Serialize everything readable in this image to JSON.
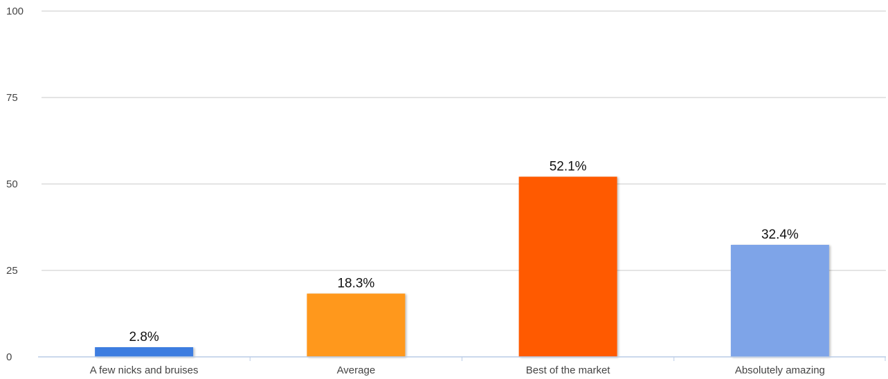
{
  "chart_data": {
    "type": "bar",
    "title": "",
    "xlabel": "",
    "ylabel": "",
    "ylim": [
      0,
      100
    ],
    "yticks": [
      0,
      25,
      50,
      75,
      100
    ],
    "grid": true,
    "legend": "none",
    "categories": [
      "A few nicks and bruises",
      "Average",
      "Best of the market",
      "Absolutely amazing"
    ],
    "values": [
      2.8,
      18.3,
      52.1,
      32.4
    ],
    "value_labels": [
      "2.8%",
      "18.3%",
      "52.1%",
      "32.4%"
    ],
    "colors": [
      "#3d7de0",
      "#ff981f",
      "#ff5a05",
      "#7ea4e8"
    ],
    "gridline_color": "#c8c8c8",
    "axis_color": "#b8cbe6"
  }
}
